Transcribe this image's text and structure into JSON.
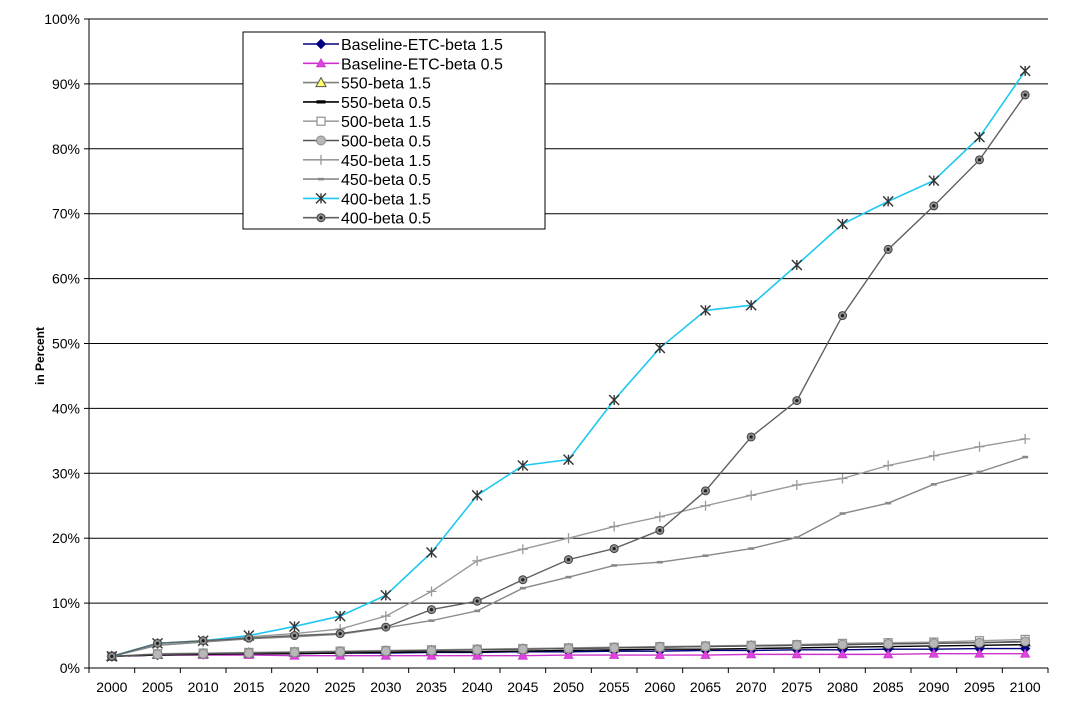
{
  "chart_data": {
    "type": "line",
    "title": "",
    "xlabel": "",
    "ylabel": "in Percent",
    "ylim": [
      0,
      100
    ],
    "y_ticks": [
      "0%",
      "10%",
      "20%",
      "30%",
      "40%",
      "50%",
      "60%",
      "70%",
      "80%",
      "90%",
      "100%"
    ],
    "grid": "horizontal",
    "legend_position": "top-left",
    "x": [
      "2000",
      "2005",
      "2010",
      "2015",
      "2020",
      "2025",
      "2030",
      "2035",
      "2040",
      "2045",
      "2050",
      "2055",
      "2060",
      "2065",
      "2070",
      "2075",
      "2080",
      "2085",
      "2090",
      "2095",
      "2100"
    ],
    "series": [
      {
        "name": "Baseline-ETC-beta 1.5",
        "color": "#000080",
        "marker": "diamond",
        "values": [
          1.8,
          2.0,
          2.1,
          2.2,
          2.2,
          2.3,
          2.3,
          2.4,
          2.4,
          2.5,
          2.5,
          2.6,
          2.6,
          2.7,
          2.7,
          2.8,
          2.8,
          2.9,
          2.9,
          3.0,
          3.0
        ]
      },
      {
        "name": "Baseline-ETC-beta 0.5",
        "color": "#cc33cc",
        "marker": "triangle",
        "values": [
          1.8,
          2.0,
          2.0,
          2.0,
          1.9,
          1.9,
          1.9,
          1.9,
          1.9,
          1.9,
          2.0,
          2.0,
          2.0,
          2.0,
          2.1,
          2.1,
          2.1,
          2.1,
          2.2,
          2.2,
          2.2
        ]
      },
      {
        "name": "550-beta 1.5",
        "color": "#808080",
        "marker": "triangle-yellow",
        "values": [
          1.8,
          2.1,
          2.2,
          2.3,
          2.4,
          2.5,
          2.6,
          2.7,
          2.8,
          2.9,
          3.0,
          3.1,
          3.2,
          3.3,
          3.4,
          3.5,
          3.6,
          3.7,
          3.8,
          3.9,
          4.0
        ]
      },
      {
        "name": "550-beta 0.5",
        "color": "#000000",
        "marker": "dash",
        "values": [
          1.8,
          2.0,
          2.1,
          2.2,
          2.2,
          2.3,
          2.4,
          2.5,
          2.5,
          2.6,
          2.7,
          2.8,
          2.9,
          2.9,
          3.0,
          3.1,
          3.2,
          3.3,
          3.4,
          3.5,
          3.6
        ]
      },
      {
        "name": "500-beta 1.5",
        "color": "#a0a0a0",
        "marker": "square-open",
        "values": [
          1.8,
          2.2,
          2.3,
          2.4,
          2.5,
          2.6,
          2.7,
          2.8,
          2.9,
          3.0,
          3.1,
          3.2,
          3.3,
          3.4,
          3.5,
          3.6,
          3.8,
          3.9,
          4.0,
          4.2,
          4.4
        ]
      },
      {
        "name": "500-beta 0.5",
        "color": "#555555",
        "marker": "circle-grey",
        "values": [
          1.8,
          2.1,
          2.2,
          2.3,
          2.4,
          2.5,
          2.6,
          2.7,
          2.8,
          2.9,
          3.0,
          3.1,
          3.2,
          3.3,
          3.4,
          3.5,
          3.6,
          3.7,
          3.8,
          3.9,
          4.1
        ]
      },
      {
        "name": "450-beta 1.5",
        "color": "#999999",
        "marker": "plus",
        "values": [
          1.8,
          3.5,
          4.0,
          4.8,
          5.3,
          6.0,
          8.0,
          11.8,
          16.5,
          18.3,
          20.0,
          21.8,
          23.3,
          25.0,
          26.6,
          28.2,
          29.2,
          31.2,
          32.7,
          34.1,
          35.3
        ]
      },
      {
        "name": "450-beta 0.5",
        "color": "#888888",
        "marker": "small-dash",
        "values": [
          1.8,
          3.5,
          4.0,
          4.5,
          4.8,
          5.2,
          6.2,
          7.3,
          8.8,
          12.3,
          14.0,
          15.8,
          16.3,
          17.3,
          18.4,
          20.1,
          23.8,
          25.4,
          28.3,
          30.2,
          32.5
        ]
      },
      {
        "name": "400-beta 1.5",
        "color": "#1ec8f0",
        "marker": "asterisk",
        "values": [
          1.8,
          3.8,
          4.2,
          5.0,
          6.4,
          8.0,
          11.2,
          17.8,
          26.6,
          31.2,
          32.1,
          41.3,
          49.3,
          55.1,
          55.9,
          62.1,
          68.4,
          71.9,
          75.1,
          81.8,
          92.0
        ]
      },
      {
        "name": "400-beta 0.5",
        "color": "#606060",
        "marker": "circle-dark",
        "values": [
          1.8,
          3.8,
          4.2,
          4.6,
          5.0,
          5.3,
          6.3,
          9.0,
          10.3,
          13.6,
          16.7,
          18.4,
          21.2,
          27.3,
          35.6,
          41.2,
          54.3,
          64.5,
          71.2,
          78.3,
          88.3
        ]
      }
    ]
  }
}
